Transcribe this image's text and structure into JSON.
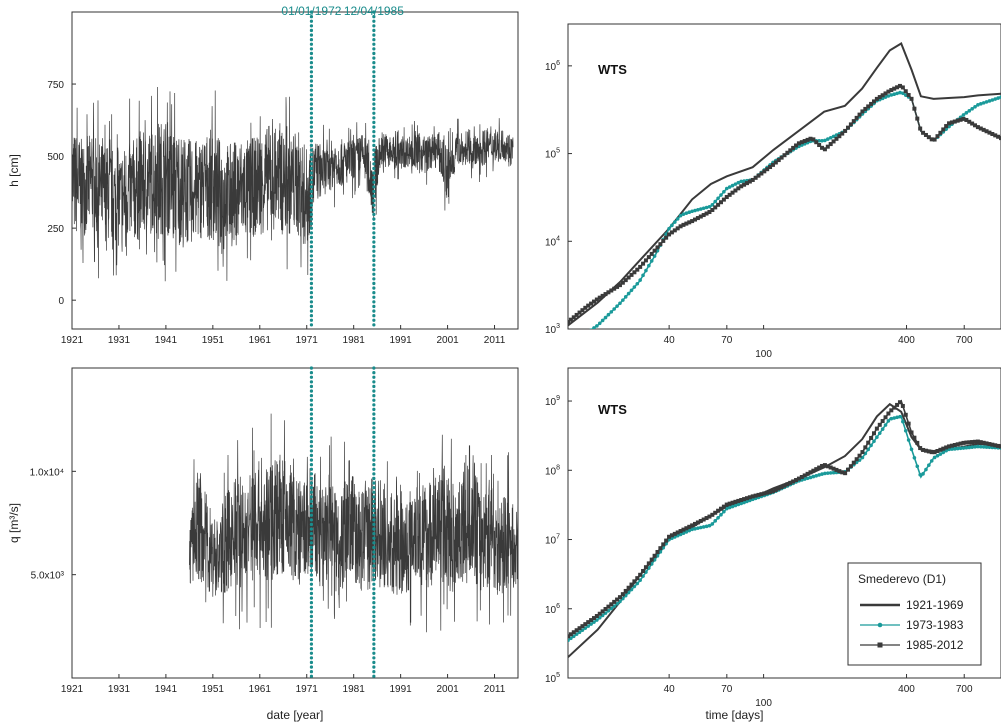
{
  "colors": {
    "dark": "#3a3a3a",
    "teal": "#1a9a9a",
    "vline": "#1a8c8c"
  },
  "chart_data": [
    {
      "id": "h-timeseries",
      "type": "line",
      "xlabel": "",
      "ylabel": "h [cm]",
      "xlim": [
        1921,
        2016
      ],
      "ylim": [
        -100,
        1000
      ],
      "xticks": [
        1921,
        1931,
        1941,
        1951,
        1961,
        1971,
        1981,
        1991,
        2001,
        2011
      ],
      "yticks": [
        {
          "value": 0,
          "label": "0"
        },
        {
          "value": 250,
          "label": "250"
        },
        {
          "value": 500,
          "label": "500"
        },
        {
          "value": 750,
          "label": "750"
        }
      ],
      "annotations": [
        {
          "x": 1972.0,
          "label": "01/01/1972"
        },
        {
          "x": 1985.3,
          "label": "12/04/1985"
        }
      ],
      "series": [
        {
          "color": "#3a3a3a",
          "x": [
            1921,
            1923,
            1925,
            1927,
            1929,
            1931,
            1933,
            1935,
            1937,
            1939,
            1941,
            1943,
            1945,
            1947,
            1949,
            1951,
            1953,
            1955,
            1957,
            1959,
            1961,
            1963,
            1965,
            1967,
            1969,
            1971,
            1973,
            1975,
            1977,
            1979,
            1981,
            1983,
            1985,
            1987,
            1989,
            1991,
            1993,
            1995,
            1997,
            1999,
            2001,
            2003,
            2005,
            2007,
            2009,
            2011,
            2013,
            2015
          ],
          "ymin": [
            60,
            80,
            90,
            70,
            60,
            40,
            60,
            50,
            80,
            70,
            60,
            40,
            20,
            50,
            70,
            40,
            60,
            30,
            50,
            70,
            80,
            90,
            100,
            80,
            70,
            20,
            250,
            300,
            320,
            330,
            350,
            380,
            200,
            420,
            400,
            410,
            420,
            380,
            400,
            410,
            240,
            420,
            430,
            400,
            420,
            430,
            440,
            420
          ],
          "ymax": [
            760,
            700,
            720,
            690,
            680,
            650,
            700,
            720,
            740,
            780,
            800,
            750,
            730,
            700,
            720,
            760,
            690,
            700,
            720,
            700,
            730,
            760,
            740,
            720,
            750,
            680,
            650,
            600,
            640,
            620,
            620,
            640,
            600,
            640,
            620,
            600,
            620,
            640,
            620,
            640,
            620,
            640,
            600,
            620,
            650,
            640,
            640,
            620
          ]
        }
      ]
    },
    {
      "id": "h-wts",
      "type": "line",
      "log_x": true,
      "log_y": true,
      "xlabel": "",
      "xlim": [
        15,
        1000
      ],
      "ylim": [
        1000,
        3000000
      ],
      "xticks": [
        {
          "value": 40,
          "label": "40",
          "row": 1
        },
        {
          "value": 70,
          "label": "70",
          "row": 1
        },
        {
          "value": 100,
          "label": "100",
          "row": 2
        },
        {
          "value": 400,
          "label": "400",
          "row": 1
        },
        {
          "value": 700,
          "label": "700",
          "row": 1
        }
      ],
      "yticks": [
        {
          "value": 1000,
          "base": "10",
          "exp": "3"
        },
        {
          "value": 10000,
          "base": "10",
          "exp": "4"
        },
        {
          "value": 100000,
          "base": "10",
          "exp": "5"
        },
        {
          "value": 1000000,
          "base": "10",
          "exp": "6"
        }
      ],
      "panel_label": "WTS",
      "series": [
        {
          "name": "1921-1969",
          "color": "#3a3a3a",
          "style": "line",
          "x": [
            15,
            20,
            25,
            30,
            40,
            50,
            60,
            70,
            90,
            110,
            140,
            180,
            220,
            260,
            300,
            340,
            380,
            420,
            460,
            520,
            600,
            700,
            800,
            1000
          ],
          "y": [
            1100,
            2000,
            3500,
            6000,
            14000,
            30000,
            45000,
            55000,
            70000,
            110000,
            180000,
            300000,
            350000,
            550000,
            950000,
            1500000,
            1800000,
            900000,
            450000,
            420000,
            430000,
            440000,
            460000,
            480000
          ]
        },
        {
          "name": "1973-1983",
          "color": "#1a9a9a",
          "style": "dots",
          "x": [
            15,
            18,
            20,
            25,
            30,
            35,
            40,
            45,
            50,
            60,
            70,
            80,
            90,
            110,
            140,
            160,
            180,
            220,
            260,
            300,
            340,
            380,
            420,
            460,
            520,
            600,
            700,
            800,
            1000
          ],
          "y": [
            600,
            900,
            1100,
            2000,
            3500,
            7000,
            14000,
            20000,
            22000,
            25000,
            40000,
            48000,
            50000,
            80000,
            120000,
            140000,
            140000,
            180000,
            280000,
            400000,
            460000,
            500000,
            420000,
            180000,
            140000,
            200000,
            280000,
            360000,
            440000
          ]
        },
        {
          "name": "1985-2012",
          "color": "#3a3a3a",
          "style": "squares",
          "x": [
            15,
            18,
            20,
            25,
            30,
            35,
            40,
            45,
            50,
            60,
            70,
            80,
            90,
            110,
            140,
            160,
            180,
            220,
            260,
            300,
            340,
            380,
            420,
            460,
            520,
            600,
            700,
            800,
            1000
          ],
          "y": [
            1200,
            1800,
            2200,
            3200,
            5000,
            8000,
            12000,
            15000,
            17000,
            22000,
            32000,
            42000,
            50000,
            75000,
            130000,
            150000,
            110000,
            180000,
            300000,
            420000,
            520000,
            600000,
            420000,
            180000,
            140000,
            220000,
            250000,
            200000,
            150000
          ]
        }
      ]
    },
    {
      "id": "q-timeseries",
      "type": "line",
      "xlabel": "date [year]",
      "ylabel": "q [m³/s]",
      "xlim": [
        1921,
        2016
      ],
      "ylim": [
        0,
        15000
      ],
      "xticks": [
        1921,
        1931,
        1941,
        1951,
        1961,
        1971,
        1981,
        1991,
        2001,
        2011
      ],
      "yticks": [
        {
          "value": 5000,
          "label": "5.0x10³"
        },
        {
          "value": 10000,
          "label": "1.0x10⁴"
        }
      ],
      "annotations": [
        {
          "x": 1972.0,
          "label": ""
        },
        {
          "x": 1985.3,
          "label": ""
        }
      ],
      "series": [
        {
          "color": "#3a3a3a",
          "x": [
            1946,
            1948,
            1950,
            1952,
            1954,
            1956,
            1958,
            1960,
            1962,
            1964,
            1966,
            1968,
            1970,
            1972,
            1974,
            1976,
            1978,
            1980,
            1982,
            1984,
            1986,
            1988,
            1990,
            1992,
            1994,
            1996,
            1998,
            2000,
            2002,
            2004,
            2006,
            2008,
            2010,
            2012,
            2014,
            2016
          ],
          "ymin": [
            3000,
            2500,
            2200,
            2000,
            2100,
            2300,
            2000,
            2400,
            2200,
            2100,
            2500,
            2300,
            2000,
            2200,
            2100,
            2300,
            2000,
            2400,
            2200,
            1900,
            2100,
            2300,
            2000,
            2200,
            2400,
            2100,
            2300,
            2000,
            1800,
            2200,
            2400,
            2100,
            2300,
            2000,
            2200,
            2400
          ],
          "ymax": [
            9000,
            12500,
            10500,
            9500,
            11000,
            12000,
            11500,
            13500,
            12000,
            14000,
            13000,
            12500,
            11500,
            13000,
            11000,
            12500,
            10500,
            13500,
            11000,
            12000,
            12500,
            10500,
            11000,
            10000,
            12500,
            11500,
            12000,
            13000,
            11500,
            12500,
            14200,
            11000,
            12000,
            10500,
            11000,
            9500
          ]
        }
      ]
    },
    {
      "id": "q-wts",
      "type": "line",
      "log_x": true,
      "log_y": true,
      "xlabel": "time [days]",
      "xlim": [
        15,
        1000
      ],
      "ylim": [
        100000,
        3000000000
      ],
      "xticks": [
        {
          "value": 40,
          "label": "40",
          "row": 1
        },
        {
          "value": 70,
          "label": "70",
          "row": 1
        },
        {
          "value": 100,
          "label": "100",
          "row": 2
        },
        {
          "value": 400,
          "label": "400",
          "row": 1
        },
        {
          "value": 700,
          "label": "700",
          "row": 1
        }
      ],
      "yticks": [
        {
          "value": 100000,
          "base": "10",
          "exp": "5"
        },
        {
          "value": 1000000,
          "base": "10",
          "exp": "6"
        },
        {
          "value": 10000000,
          "base": "10",
          "exp": "7"
        },
        {
          "value": 100000000,
          "base": "10",
          "exp": "8"
        },
        {
          "value": 1000000000,
          "base": "10",
          "exp": "9"
        }
      ],
      "panel_label": "WTS",
      "legend": {
        "title": "Smederevo (D1)",
        "position": "lower-right",
        "entries": [
          "1921-1969",
          "1973-1983",
          "1985-2012"
        ]
      },
      "series": [
        {
          "name": "1921-1969",
          "color": "#3a3a3a",
          "style": "line",
          "x": [
            15,
            20,
            25,
            30,
            40,
            50,
            60,
            70,
            90,
            110,
            140,
            180,
            220,
            260,
            300,
            340,
            380,
            420,
            460,
            520,
            600,
            700,
            800,
            1000
          ],
          "y": [
            200000,
            500000,
            1300000,
            3000000,
            10000000,
            15000000,
            22000000,
            30000000,
            40000000,
            55000000,
            75000000,
            110000000,
            160000000,
            280000000,
            600000000,
            900000000,
            700000000,
            300000000,
            200000000,
            190000000,
            200000000,
            220000000,
            240000000,
            230000000
          ]
        },
        {
          "name": "1973-1983",
          "color": "#1a9a9a",
          "style": "dots",
          "x": [
            15,
            20,
            25,
            30,
            40,
            50,
            60,
            70,
            90,
            110,
            140,
            180,
            220,
            260,
            300,
            340,
            380,
            420,
            460,
            520,
            600,
            700,
            800,
            1000
          ],
          "y": [
            350000,
            700000,
            1300000,
            2500000,
            10000000,
            14000000,
            16000000,
            28000000,
            38000000,
            48000000,
            70000000,
            90000000,
            95000000,
            150000000,
            300000000,
            550000000,
            600000000,
            200000000,
            80000000,
            150000000,
            200000000,
            210000000,
            220000000,
            210000000
          ]
        },
        {
          "name": "1985-2012",
          "color": "#3a3a3a",
          "style": "squares",
          "x": [
            15,
            20,
            25,
            30,
            40,
            50,
            60,
            70,
            90,
            110,
            140,
            180,
            220,
            260,
            300,
            340,
            380,
            420,
            460,
            520,
            600,
            700,
            800,
            1000
          ],
          "y": [
            400000,
            800000,
            1500000,
            3000000,
            11000000,
            16000000,
            22000000,
            32000000,
            42000000,
            50000000,
            75000000,
            120000000,
            90000000,
            180000000,
            400000000,
            700000000,
            1000000000,
            350000000,
            200000000,
            180000000,
            220000000,
            250000000,
            260000000,
            220000000
          ]
        }
      ]
    }
  ]
}
